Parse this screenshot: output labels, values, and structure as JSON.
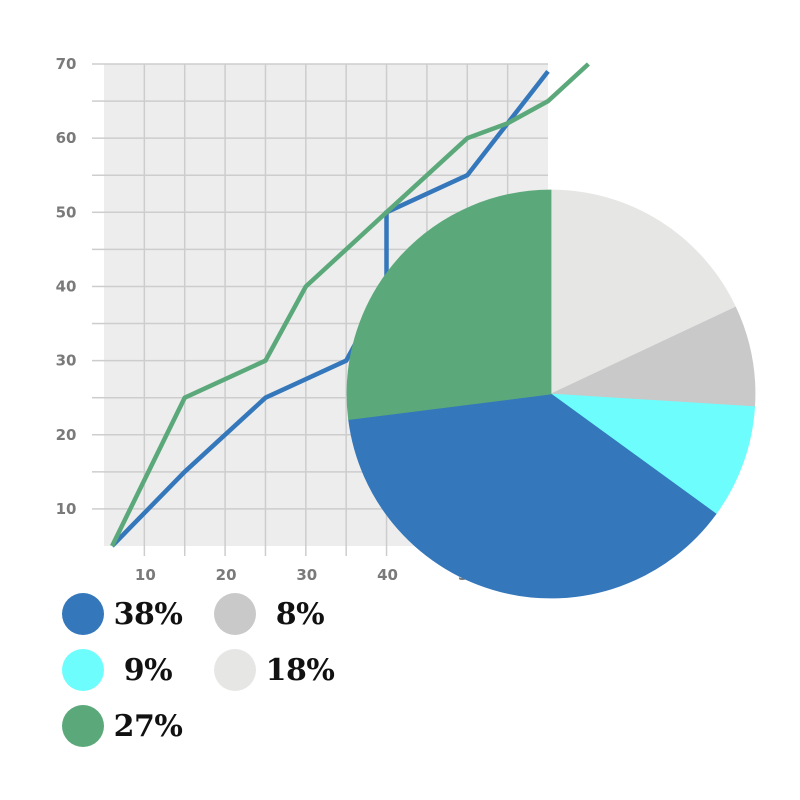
{
  "colors": {
    "blue": "#3577BB",
    "green": "#5BA97A",
    "cyan": "#6EFDFD",
    "light_gray": "#E6E6E5",
    "mid_gray": "#C9C9C9",
    "plot_bg": "#EDEDED",
    "grid": "#CDCDCD",
    "tick_text": "#7A7A7A"
  },
  "chart_data": [
    {
      "type": "line",
      "xlim": [
        5,
        60
      ],
      "ylim": [
        5,
        70
      ],
      "x_ticks": [
        "10",
        "20",
        "30",
        "40",
        "50"
      ],
      "y_ticks": [
        "10",
        "20",
        "30",
        "40",
        "50",
        "60",
        "70"
      ],
      "grid": true,
      "series": [
        {
          "color": "#3577BB",
          "points": [
            [
              6,
              5
            ],
            [
              15,
              15
            ],
            [
              25,
              25
            ],
            [
              35,
              30
            ],
            [
              40,
              40
            ],
            [
              40,
              50
            ],
            [
              50,
              55
            ],
            [
              60,
              69
            ]
          ]
        },
        {
          "color": "#5BA97A",
          "points": [
            [
              6,
              5
            ],
            [
              15,
              25
            ],
            [
              25,
              30
            ],
            [
              30,
              40
            ],
            [
              40,
              50
            ],
            [
              50,
              60
            ],
            [
              55,
              62
            ],
            [
              60,
              65
            ],
            [
              65,
              70
            ]
          ]
        }
      ]
    },
    {
      "type": "pie",
      "slices": [
        {
          "label": "18%",
          "value": 18,
          "color": "#E6E6E5"
        },
        {
          "label": "8%",
          "value": 8,
          "color": "#C9C9C9"
        },
        {
          "label": "9%",
          "value": 9,
          "color": "#6EFDFD"
        },
        {
          "label": "38%",
          "value": 38,
          "color": "#3577BB"
        },
        {
          "label": "27%",
          "value": 27,
          "color": "#5BA97A"
        }
      ]
    }
  ],
  "legend": [
    {
      "label": "38%",
      "color": "#3577BB"
    },
    {
      "label": "8%",
      "color": "#C9C9C9"
    },
    {
      "label": "9%",
      "color": "#6EFDFD"
    },
    {
      "label": "18%",
      "color": "#E6E6E5"
    },
    {
      "label": "27%",
      "color": "#5BA97A"
    }
  ]
}
